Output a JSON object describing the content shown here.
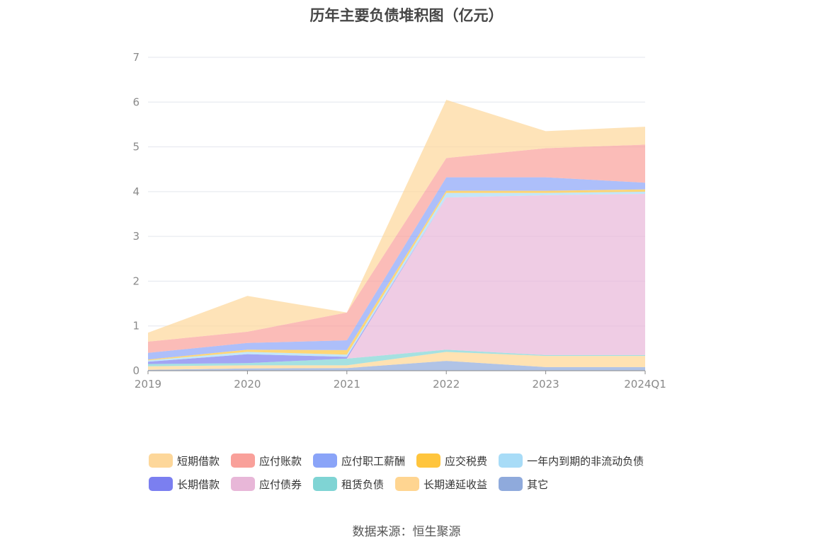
{
  "chart_data": {
    "type": "area",
    "stacked": true,
    "title": "历年主要负债堆积图（亿元）",
    "source": "数据来源：恒生聚源",
    "x": [
      "2019",
      "2020",
      "2021",
      "2022",
      "2023",
      "2024Q1"
    ],
    "ylim": [
      0,
      7
    ],
    "yticks": [
      "0",
      "1",
      "2",
      "3",
      "4",
      "5",
      "6",
      "7"
    ],
    "grid": true,
    "legend_position": "bottom",
    "series": [
      {
        "name": "其它",
        "color": "#8faadc",
        "values": [
          0.02,
          0.05,
          0.06,
          0.22,
          0.08,
          0.08
        ]
      },
      {
        "name": "长期递延收益",
        "color": "#ffd591",
        "values": [
          0.08,
          0.07,
          0.06,
          0.2,
          0.25,
          0.25
        ]
      },
      {
        "name": "租赁负债",
        "color": "#7fd4d4",
        "values": [
          0.05,
          0.05,
          0.15,
          0.05,
          0.02,
          0.02
        ]
      },
      {
        "name": "应付债券",
        "color": "#e8b7d8",
        "values": [
          0.0,
          0.0,
          0.0,
          3.4,
          3.57,
          3.6
        ]
      },
      {
        "name": "长期借款",
        "color": "#7b7ff0",
        "values": [
          0.05,
          0.2,
          0.04,
          0.0,
          0.0,
          0.0
        ]
      },
      {
        "name": "一年内到期的非流动负债",
        "color": "#a8dcf7",
        "values": [
          0.03,
          0.05,
          0.05,
          0.1,
          0.05,
          0.05
        ]
      },
      {
        "name": "应交税费",
        "color": "#ffc53d",
        "values": [
          0.02,
          0.05,
          0.1,
          0.05,
          0.05,
          0.05
        ]
      },
      {
        "name": "应付职工薪酬",
        "color": "#8aa4f8",
        "values": [
          0.15,
          0.15,
          0.22,
          0.3,
          0.3,
          0.15
        ]
      },
      {
        "name": "应付账款",
        "color": "#f9a09a",
        "values": [
          0.25,
          0.25,
          0.62,
          0.43,
          0.65,
          0.85
        ]
      },
      {
        "name": "短期借款",
        "color": "#fdd79a",
        "values": [
          0.2,
          0.8,
          0.0,
          1.3,
          0.38,
          0.4
        ]
      }
    ],
    "legend_order": [
      [
        "短期借款",
        "应付账款",
        "应付职工薪酬",
        "应交税费",
        "一年内到期的非流动负债"
      ],
      [
        "长期借款",
        "应付债券",
        "租赁负债",
        "长期递延收益",
        "其它"
      ]
    ]
  }
}
